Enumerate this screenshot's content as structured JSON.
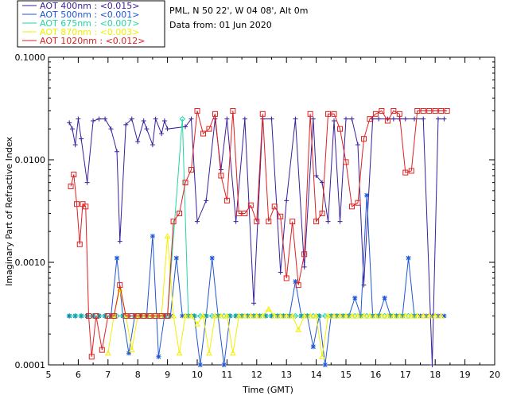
{
  "header": {
    "site": "PML, N 50 22', W 04 08', Alt 0m",
    "date": "Data from: 01 Jun 2020"
  },
  "chart_data": {
    "type": "line",
    "title": "",
    "xlabel": "Time (GMT)",
    "ylabel": "Imaginary Part of Refractive Index",
    "xlim": [
      5,
      20
    ],
    "ylim": [
      0.0001,
      0.1
    ],
    "yscale": "log",
    "xticks": [
      "5",
      "6",
      "7",
      "8",
      "9",
      "10",
      "11",
      "12",
      "13",
      "14",
      "15",
      "16",
      "17",
      "18",
      "19",
      "20"
    ],
    "yticks": [
      "0.0001",
      "0.0010",
      "0.0100",
      "0.1000"
    ],
    "legend_position": "top-left-outside",
    "series": [
      {
        "name": "AOT  400nm : <0.015>",
        "color": "#3a1f9c",
        "marker": "plus",
        "x": [
          5.7,
          5.8,
          5.9,
          6.0,
          6.1,
          6.3,
          6.5,
          6.7,
          6.9,
          7.1,
          7.3,
          7.4,
          7.6,
          7.8,
          8.0,
          8.2,
          8.3,
          8.5,
          8.6,
          8.8,
          8.9,
          9.0,
          9.6,
          9.8,
          10.0,
          10.3,
          10.6,
          10.8,
          11.0,
          11.3,
          11.6,
          11.9,
          12.2,
          12.5,
          12.8,
          13.0,
          13.3,
          13.6,
          13.9,
          14.0,
          14.2,
          14.4,
          14.6,
          14.8,
          15.0,
          15.2,
          15.4,
          15.6,
          15.9,
          16.1,
          16.4,
          16.6,
          16.8,
          17.0,
          17.3,
          17.6,
          17.9,
          18.1,
          18.3
        ],
        "y": [
          0.023,
          0.02,
          0.014,
          0.025,
          0.016,
          0.006,
          0.024,
          0.025,
          0.025,
          0.02,
          0.012,
          0.0016,
          0.022,
          0.025,
          0.015,
          0.024,
          0.02,
          0.014,
          0.025,
          0.018,
          0.024,
          0.02,
          0.021,
          0.025,
          0.0025,
          0.004,
          0.025,
          0.008,
          0.025,
          0.0025,
          0.025,
          0.0004,
          0.025,
          0.025,
          0.0008,
          0.004,
          0.025,
          0.0009,
          0.025,
          0.007,
          0.006,
          0.0025,
          0.024,
          0.0025,
          0.025,
          0.025,
          0.014,
          0.0006,
          0.025,
          0.025,
          0.025,
          0.025,
          0.025,
          0.025,
          0.025,
          0.025,
          0.0001,
          0.025,
          0.025
        ]
      },
      {
        "name": "AOT  500nm : <0.001>",
        "color": "#1f56d6",
        "marker": "star",
        "x": [
          5.7,
          5.9,
          6.1,
          6.3,
          6.5,
          6.7,
          6.9,
          7.1,
          7.3,
          7.5,
          7.7,
          7.9,
          8.1,
          8.3,
          8.5,
          8.7,
          8.9,
          9.1,
          9.3,
          9.5,
          9.7,
          9.9,
          10.1,
          10.3,
          10.5,
          10.7,
          10.9,
          11.1,
          11.3,
          11.5,
          11.7,
          11.9,
          12.1,
          12.3,
          12.5,
          12.7,
          12.9,
          13.1,
          13.3,
          13.5,
          13.7,
          13.9,
          14.1,
          14.3,
          14.5,
          14.7,
          14.9,
          15.1,
          15.3,
          15.5,
          15.7,
          15.9,
          16.1,
          16.3,
          16.5,
          16.7,
          16.9,
          17.1,
          17.3,
          17.5,
          17.7,
          17.9,
          18.1,
          18.3
        ],
        "y": [
          0.0003,
          0.0003,
          0.0003,
          0.0003,
          0.0003,
          0.0003,
          0.0003,
          0.0003,
          0.0011,
          0.0003,
          0.00013,
          0.0003,
          0.0003,
          0.0003,
          0.0018,
          0.00012,
          0.0003,
          0.0003,
          0.0011,
          0.0003,
          0.0003,
          0.0003,
          0.0001,
          0.0003,
          0.0011,
          0.0003,
          0.0001,
          0.0003,
          0.0003,
          0.0003,
          0.0003,
          0.0003,
          0.0003,
          0.0003,
          0.0003,
          0.0003,
          0.0003,
          0.0003,
          0.00065,
          0.0003,
          0.0003,
          0.00015,
          0.0003,
          0.0001,
          0.0003,
          0.0003,
          0.0003,
          0.0003,
          0.00045,
          0.0003,
          0.0045,
          0.0003,
          0.0003,
          0.00045,
          0.0003,
          0.0003,
          0.0003,
          0.0011,
          0.0003,
          0.0003,
          0.0003,
          0.0003,
          0.0003,
          0.0003
        ]
      },
      {
        "name": "AOT  675nm : <0.007>",
        "color": "#22d6a2",
        "marker": "diamond",
        "x": [
          5.7,
          5.9,
          6.1,
          6.3,
          6.5,
          6.7,
          6.9,
          7.1,
          7.3,
          7.5,
          7.7,
          7.9,
          8.1,
          8.3,
          8.5,
          8.7,
          8.9,
          9.0,
          9.5,
          9.7,
          9.9,
          10.1,
          10.3,
          10.5,
          10.7,
          10.9,
          11.1,
          11.3,
          11.5,
          11.7,
          11.9,
          12.1,
          12.3,
          12.5,
          12.7,
          12.9,
          13.1,
          13.3,
          13.5,
          13.7,
          13.9,
          14.1,
          14.3,
          14.5,
          14.7,
          14.9,
          15.1,
          15.3,
          15.5,
          15.7,
          15.9,
          16.1,
          16.3,
          16.5,
          16.7,
          16.9,
          17.1,
          17.3
        ],
        "y": [
          0.0003,
          0.0003,
          0.0003,
          0.0003,
          0.0003,
          0.0003,
          0.0003,
          0.0003,
          0.0003,
          0.0003,
          0.0003,
          0.0003,
          0.0003,
          0.0003,
          0.0003,
          0.0003,
          0.0003,
          0.0003,
          0.025,
          0.0003,
          0.0003,
          0.0003,
          0.0003,
          0.0003,
          0.0003,
          0.0003,
          0.0003,
          0.0003,
          0.0003,
          0.0003,
          0.0003,
          0.0003,
          0.0003,
          0.0003,
          0.0003,
          0.0003,
          0.0003,
          0.0003,
          0.0003,
          0.0003,
          0.0003,
          0.0003,
          0.0003,
          0.0003,
          0.0003,
          0.0003,
          0.0003,
          0.0003,
          0.0003,
          0.0003,
          0.0003,
          0.0003,
          0.0003,
          0.0003,
          0.0003,
          0.0003,
          0.0003,
          0.0003
        ]
      },
      {
        "name": "AOT  870nm : <0.003>",
        "color": "#f2f000",
        "marker": "triangle",
        "x": [
          7.0,
          7.2,
          7.4,
          7.6,
          7.8,
          8.0,
          8.2,
          8.4,
          8.6,
          8.8,
          9.0,
          9.2,
          9.4,
          9.6,
          9.8,
          10.0,
          10.2,
          10.4,
          10.6,
          10.8,
          11.0,
          11.2,
          11.4,
          11.6,
          11.8,
          12.0,
          12.2,
          12.4,
          12.6,
          12.8,
          13.0,
          13.2,
          13.4,
          13.6,
          13.8,
          14.0,
          14.2,
          14.4,
          14.6,
          14.8,
          15.0,
          15.2,
          15.4,
          15.6,
          15.8,
          16.0,
          16.2,
          16.4,
          16.6,
          16.8,
          17.0,
          17.2,
          17.4,
          17.6,
          17.8,
          18.0,
          18.2
        ],
        "y": [
          0.00013,
          0.0003,
          0.00055,
          0.0003,
          0.00014,
          0.0003,
          0.0003,
          0.0003,
          0.0003,
          0.0003,
          0.0018,
          0.0003,
          0.00013,
          0.0003,
          0.0003,
          0.00025,
          0.0003,
          0.00013,
          0.0003,
          0.0003,
          0.0003,
          0.00013,
          0.0003,
          0.0003,
          0.0003,
          0.0003,
          0.0003,
          0.00035,
          0.0003,
          0.0003,
          0.0003,
          0.0003,
          0.00022,
          0.0003,
          0.0003,
          0.0003,
          0.00012,
          0.0003,
          0.0003,
          0.0003,
          0.0003,
          0.0003,
          0.0003,
          0.0003,
          0.0003,
          0.0003,
          0.0003,
          0.0003,
          0.0003,
          0.0003,
          0.0003,
          0.0003,
          0.0003,
          0.0003,
          0.0003,
          0.0003,
          0.0003
        ]
      },
      {
        "name": "AOT 1020nm : <0.012>",
        "color": "#e02020",
        "marker": "square",
        "x": [
          5.75,
          5.85,
          5.95,
          6.05,
          6.15,
          6.25,
          6.35,
          6.45,
          6.6,
          6.8,
          7.0,
          7.2,
          7.4,
          7.6,
          7.8,
          8.0,
          8.2,
          8.4,
          8.6,
          8.8,
          9.0,
          9.2,
          9.4,
          9.6,
          9.8,
          10.0,
          10.2,
          10.4,
          10.6,
          10.8,
          11.0,
          11.2,
          11.4,
          11.6,
          11.8,
          12.0,
          12.2,
          12.4,
          12.6,
          12.8,
          13.0,
          13.2,
          13.4,
          13.6,
          13.8,
          14.0,
          14.2,
          14.4,
          14.6,
          14.8,
          15.0,
          15.2,
          15.4,
          15.6,
          15.8,
          16.0,
          16.2,
          16.4,
          16.6,
          16.8,
          17.0,
          17.2,
          17.4,
          17.6,
          17.8,
          18.0,
          18.2,
          18.4
        ],
        "y": [
          0.0055,
          0.0072,
          0.0037,
          0.0015,
          0.0037,
          0.0035,
          0.0003,
          0.00012,
          0.0003,
          0.00014,
          0.0003,
          0.0003,
          0.0006,
          0.0003,
          0.0003,
          0.0003,
          0.0003,
          0.0003,
          0.0003,
          0.0003,
          0.0003,
          0.0025,
          0.003,
          0.006,
          0.008,
          0.03,
          0.018,
          0.02,
          0.028,
          0.007,
          0.004,
          0.03,
          0.003,
          0.003,
          0.0036,
          0.0025,
          0.028,
          0.0025,
          0.0035,
          0.0028,
          0.0007,
          0.0025,
          0.0006,
          0.0012,
          0.028,
          0.0025,
          0.003,
          0.028,
          0.028,
          0.02,
          0.0095,
          0.0035,
          0.0038,
          0.016,
          0.025,
          0.028,
          0.03,
          0.024,
          0.03,
          0.028,
          0.0075,
          0.0078,
          0.03,
          0.03,
          0.03,
          0.03,
          0.03,
          0.03
        ]
      }
    ]
  }
}
